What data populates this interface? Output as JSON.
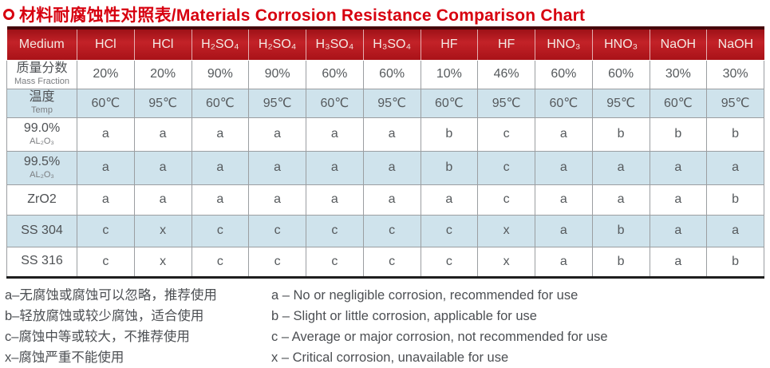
{
  "title": {
    "text": "材料耐腐蚀性对照表/Materials Corrosion Resistance Comparison Chart",
    "color": "#d7000f"
  },
  "chart_data": {
    "type": "table",
    "title": "材料耐腐蚀性对照表/Materials Corrosion Resistance Comparison Chart",
    "corner_header": "Medium",
    "media": [
      "HCl",
      "HCl",
      "H₂SO₄",
      "H₂SO₄",
      "H₃SO₄",
      "H₃SO₄",
      "HF",
      "HF",
      "HNO₃",
      "HNO₃",
      "NaOH",
      "NaOH"
    ],
    "mass_fraction": {
      "label_zh": "质量分数",
      "label_en": "Mass Fraction",
      "values": [
        "20%",
        "20%",
        "90%",
        "90%",
        "60%",
        "60%",
        "10%",
        "46%",
        "60%",
        "60%",
        "30%",
        "30%"
      ]
    },
    "temperature": {
      "label_zh": "温度",
      "label_en": "Temp",
      "values": [
        "60℃",
        "95℃",
        "60℃",
        "95℃",
        "60℃",
        "95℃",
        "60℃",
        "95℃",
        "60℃",
        "95℃",
        "60℃",
        "95℃"
      ]
    },
    "materials": [
      {
        "name": "99.0%",
        "sub": "AL₂O₃",
        "ratings": [
          "a",
          "a",
          "a",
          "a",
          "a",
          "a",
          "b",
          "c",
          "a",
          "b",
          "b",
          "b"
        ]
      },
      {
        "name": "99.5%",
        "sub": "AL₂O₃",
        "ratings": [
          "a",
          "a",
          "a",
          "a",
          "a",
          "a",
          "b",
          "c",
          "a",
          "a",
          "a",
          "a"
        ]
      },
      {
        "name": "ZrO2",
        "ratings": [
          "a",
          "a",
          "a",
          "a",
          "a",
          "a",
          "a",
          "c",
          "a",
          "a",
          "a",
          "b"
        ]
      },
      {
        "name": "SS 304",
        "ratings": [
          "c",
          "x",
          "c",
          "c",
          "c",
          "c",
          "c",
          "x",
          "a",
          "b",
          "a",
          "a"
        ]
      },
      {
        "name": "SS 316",
        "ratings": [
          "c",
          "x",
          "c",
          "c",
          "c",
          "c",
          "c",
          "x",
          "a",
          "b",
          "a",
          "b"
        ]
      }
    ],
    "legend_zh": [
      "a–无腐蚀或腐蚀可以忽略，推荐使用",
      "b–轻放腐蚀或较少腐蚀，适合使用",
      "c–腐蚀中等或较大，不推荐使用",
      "x–腐蚀严重不能使用"
    ],
    "legend_en": [
      "a – No or negligible corrosion, recommended for use",
      "b – Slight or little corrosion, applicable for use",
      "c – Average or major corrosion, not recommended for use",
      "x – Critical corrosion, unavailable for use"
    ]
  },
  "colors": {
    "title_red": "#d7000f",
    "header_red_dark": "#a91218",
    "header_red_bright": "#c32228",
    "header_top_strip": "#45070b",
    "header_text": "#f4e9e3",
    "row_blue": "#cfe3ec",
    "grid_gray": "#9b9ea1",
    "cell_text_gray": "#565a5d",
    "table_bottom_border": "#1e1e1e"
  }
}
